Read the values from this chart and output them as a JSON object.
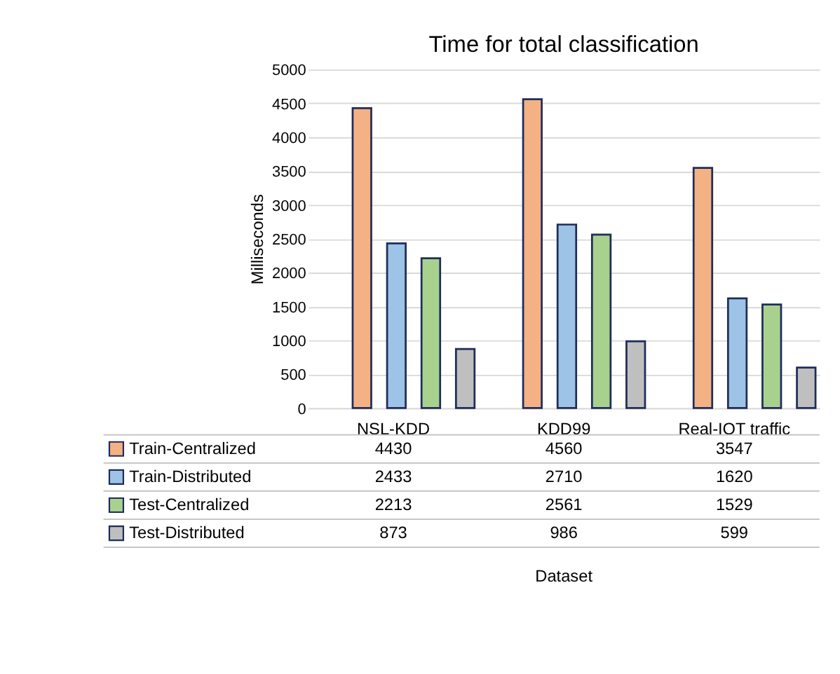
{
  "chart_data": {
    "type": "bar",
    "title": "Time for total classification",
    "annotations": [
      "Dataset"
    ],
    "ylabel": "Milliseconds",
    "categories": [
      "NSL-KDD",
      "KDD99",
      "Real-IOT traffic"
    ],
    "series": [
      {
        "name": "Train-Centralized",
        "color": "#f4b183",
        "values": [
          4430,
          4560,
          3547
        ]
      },
      {
        "name": "Train-Distributed",
        "color": "#9dc3e6",
        "values": [
          2433,
          2710,
          1620
        ]
      },
      {
        "name": "Test-Centralized",
        "color": "#a9d18e",
        "values": [
          2213,
          2561,
          1529
        ]
      },
      {
        "name": "Test-Distributed",
        "color": "#bfbfbf",
        "values": [
          873,
          986,
          599
        ]
      }
    ],
    "ylim": [
      0,
      5000
    ],
    "yticks": [
      0,
      500,
      1000,
      1500,
      2000,
      2500,
      3000,
      3500,
      4000,
      4500,
      5000
    ],
    "grid": "y",
    "legend": "bottom",
    "data_labels": true
  }
}
